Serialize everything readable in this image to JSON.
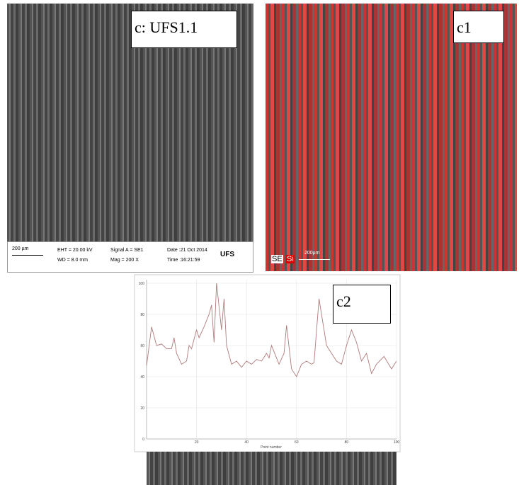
{
  "panels": {
    "c": {
      "label": "c: UFS1.1",
      "scale_bar": "200 µm",
      "eht": "EHT = 20.00 kV",
      "wd": "WD = 8.0 mm",
      "signal": "Signal A = SE1",
      "mag": "Mag =  200 X",
      "date": "Date :21 Oct 2014",
      "time": "Time :16:21:59",
      "logo": "UFS"
    },
    "c1": {
      "label": "c1",
      "se": "SE",
      "si": "Si",
      "scale_bar": "200µm"
    },
    "c2": {
      "label": "c2"
    }
  },
  "chart_data": {
    "type": "line",
    "xlabel": "Point number",
    "x": [
      0,
      2,
      4,
      6,
      8,
      10,
      11,
      12,
      14,
      16,
      17,
      18,
      20,
      21,
      23,
      25,
      26,
      27,
      28,
      29,
      30,
      31,
      32,
      34,
      36,
      38,
      40,
      42,
      44,
      46,
      48,
      49,
      50,
      52,
      53,
      55,
      56,
      58,
      60,
      62,
      64,
      66,
      67,
      69,
      70,
      72,
      74,
      76,
      78,
      80,
      82,
      84,
      86,
      88,
      90,
      92,
      95,
      98,
      100
    ],
    "series": [
      {
        "color": "#b07a7a",
        "values": [
          47,
          72,
          60,
          61,
          58,
          58,
          65,
          55,
          48,
          50,
          60,
          58,
          70,
          65,
          72,
          80,
          86,
          62,
          100,
          85,
          70,
          90,
          60,
          48,
          50,
          46,
          50,
          48,
          51,
          50,
          55,
          52,
          60,
          52,
          48,
          55,
          73,
          45,
          40,
          48,
          50,
          48,
          49,
          90,
          80,
          60,
          55,
          50,
          48,
          60,
          70,
          62,
          50,
          55,
          42,
          48,
          53,
          45,
          50
        ]
      }
    ],
    "xlim": [
      0,
      100
    ],
    "ylim": [
      0,
      100
    ],
    "xticks": [
      20,
      40,
      60,
      80,
      100
    ],
    "yticks": [
      0,
      20,
      40,
      60,
      80,
      100
    ],
    "grid": true
  }
}
